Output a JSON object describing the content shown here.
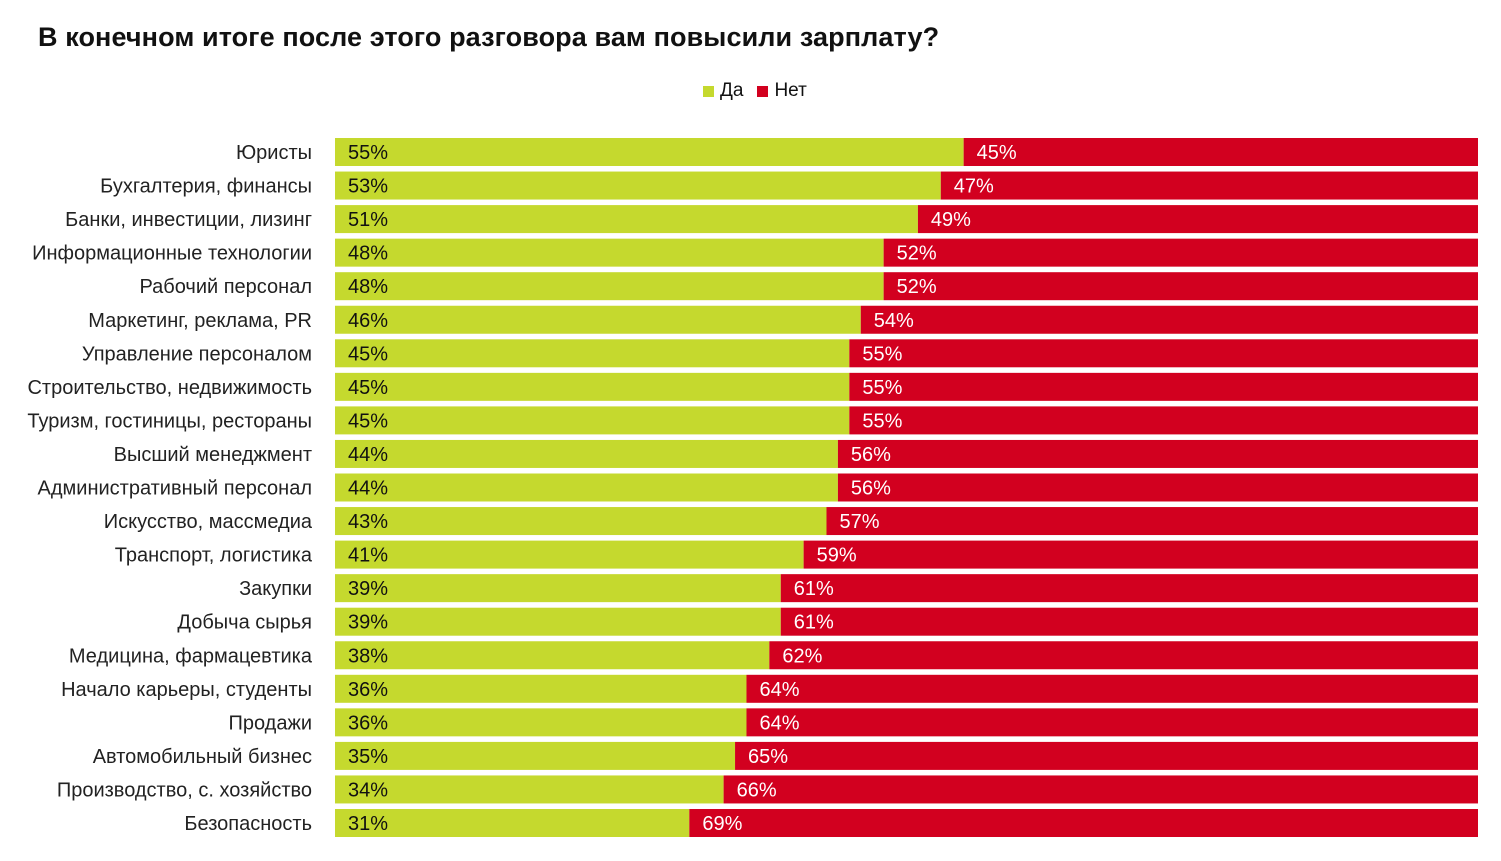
{
  "colors": {
    "yes": "#c5d92e",
    "no": "#d2001f"
  },
  "chart_data": {
    "type": "bar",
    "stacked": true,
    "orientation": "horizontal",
    "normalized": true,
    "title": "В конечном итоге после этого разговора вам повысили зарплату?",
    "legend_position": "top",
    "grid": false,
    "xlim": [
      0,
      100
    ],
    "categories": [
      "Юристы",
      "Бухгалтерия, финансы",
      "Банки, инвестиции, лизинг",
      "Информационные технологии",
      "Рабочий персонал",
      "Маркетинг, реклама, PR",
      "Управление персоналом",
      "Строительство, недвижимость",
      "Туризм, гостиницы, рестораны",
      "Высший менеджмент",
      "Административный персонал",
      "Искусство, массмедиа",
      "Транспорт, логистика",
      "Закупки",
      "Добыча сырья",
      "Медицина, фармацевтика",
      "Начало карьеры, студенты",
      "Продажи",
      "Автомобильный бизнес",
      "Производство, с. хозяйство",
      "Безопасность"
    ],
    "series": [
      {
        "name": "Да",
        "values": [
          55,
          53,
          51,
          48,
          48,
          46,
          45,
          45,
          45,
          44,
          44,
          43,
          41,
          39,
          39,
          38,
          36,
          36,
          35,
          34,
          31
        ]
      },
      {
        "name": "Нет",
        "values": [
          45,
          47,
          49,
          52,
          52,
          54,
          55,
          55,
          55,
          56,
          56,
          57,
          59,
          61,
          61,
          62,
          64,
          64,
          65,
          66,
          69
        ]
      }
    ],
    "value_suffix": "%"
  }
}
